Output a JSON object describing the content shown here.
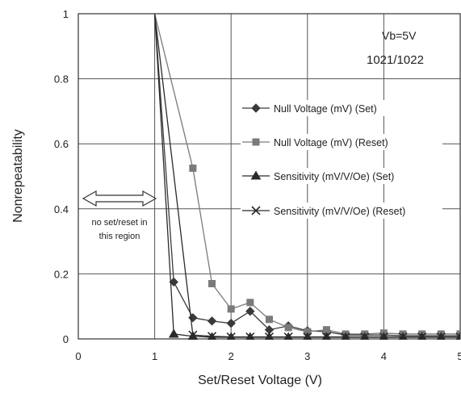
{
  "chart_data": {
    "type": "line",
    "xlabel": "Set/Reset Voltage (V)",
    "ylabel": "Nonrepeatability",
    "xlim": [
      0,
      5
    ],
    "ylim": [
      0,
      1
    ],
    "x_ticks": [
      "0",
      "1",
      "2",
      "3",
      "4",
      "5"
    ],
    "y_ticks": [
      "0",
      "0.2",
      "0.4",
      "0.6",
      "0.8",
      "1"
    ],
    "grid": true,
    "legend_position": "right",
    "annotations": {
      "vb": "Vb=5V",
      "part": "1021/1022",
      "region_note_line1": "no set/reset in",
      "region_note_line2": "this region"
    },
    "series": [
      {
        "name": "Null Voltage (mV) (Set)",
        "marker": "diamond",
        "color": "#3a3a3a",
        "x": [
          1.0,
          1.25,
          1.5,
          1.75,
          2.0,
          2.25,
          2.5,
          2.75,
          3.0,
          3.25,
          3.5,
          3.75,
          4.0,
          4.25,
          4.5,
          4.75,
          5.0
        ],
        "y": [
          1.0,
          0.175,
          0.065,
          0.055,
          0.048,
          0.085,
          0.028,
          0.04,
          0.025,
          0.022,
          0.012,
          0.012,
          0.012,
          0.01,
          0.01,
          0.01,
          0.01
        ]
      },
      {
        "name": "Null Voltage (mV) (Reset)",
        "marker": "square",
        "color": "#7a7a7a",
        "x": [
          1.0,
          1.5,
          1.75,
          2.0,
          2.25,
          2.5,
          2.75,
          3.0,
          3.25,
          3.5,
          3.75,
          4.0,
          4.25,
          4.5,
          4.75,
          5.0
        ],
        "y": [
          1.0,
          0.525,
          0.17,
          0.092,
          0.112,
          0.06,
          0.035,
          0.022,
          0.028,
          0.015,
          0.015,
          0.018,
          0.015,
          0.015,
          0.015,
          0.015
        ]
      },
      {
        "name": "Sensitivity (mV/V/Oe) (Set)",
        "marker": "triangle",
        "color": "#2a2a2a",
        "x": [
          1.0,
          1.25,
          1.5,
          1.75,
          2.0,
          2.25,
          2.5,
          2.75,
          3.0,
          3.25,
          3.5,
          3.75,
          4.0,
          4.25,
          4.5,
          4.75,
          5.0
        ],
        "y": [
          1.0,
          0.015,
          0.008,
          0.005,
          0.005,
          0.005,
          0.005,
          0.005,
          0.005,
          0.005,
          0.005,
          0.005,
          0.005,
          0.005,
          0.005,
          0.005,
          0.005
        ]
      },
      {
        "name": "Sensitivity (mV/V/Oe) (Reset)",
        "marker": "x",
        "color": "#2a2a2a",
        "x": [
          1.0,
          1.5,
          1.75,
          2.0,
          2.25,
          2.5,
          2.75,
          3.0,
          3.25,
          3.5,
          3.75,
          4.0,
          4.25,
          4.5,
          4.75,
          5.0
        ],
        "y": [
          1.0,
          0.012,
          0.008,
          0.006,
          0.006,
          0.006,
          0.006,
          0.006,
          0.006,
          0.006,
          0.006,
          0.006,
          0.006,
          0.006,
          0.006,
          0.006
        ]
      }
    ]
  }
}
